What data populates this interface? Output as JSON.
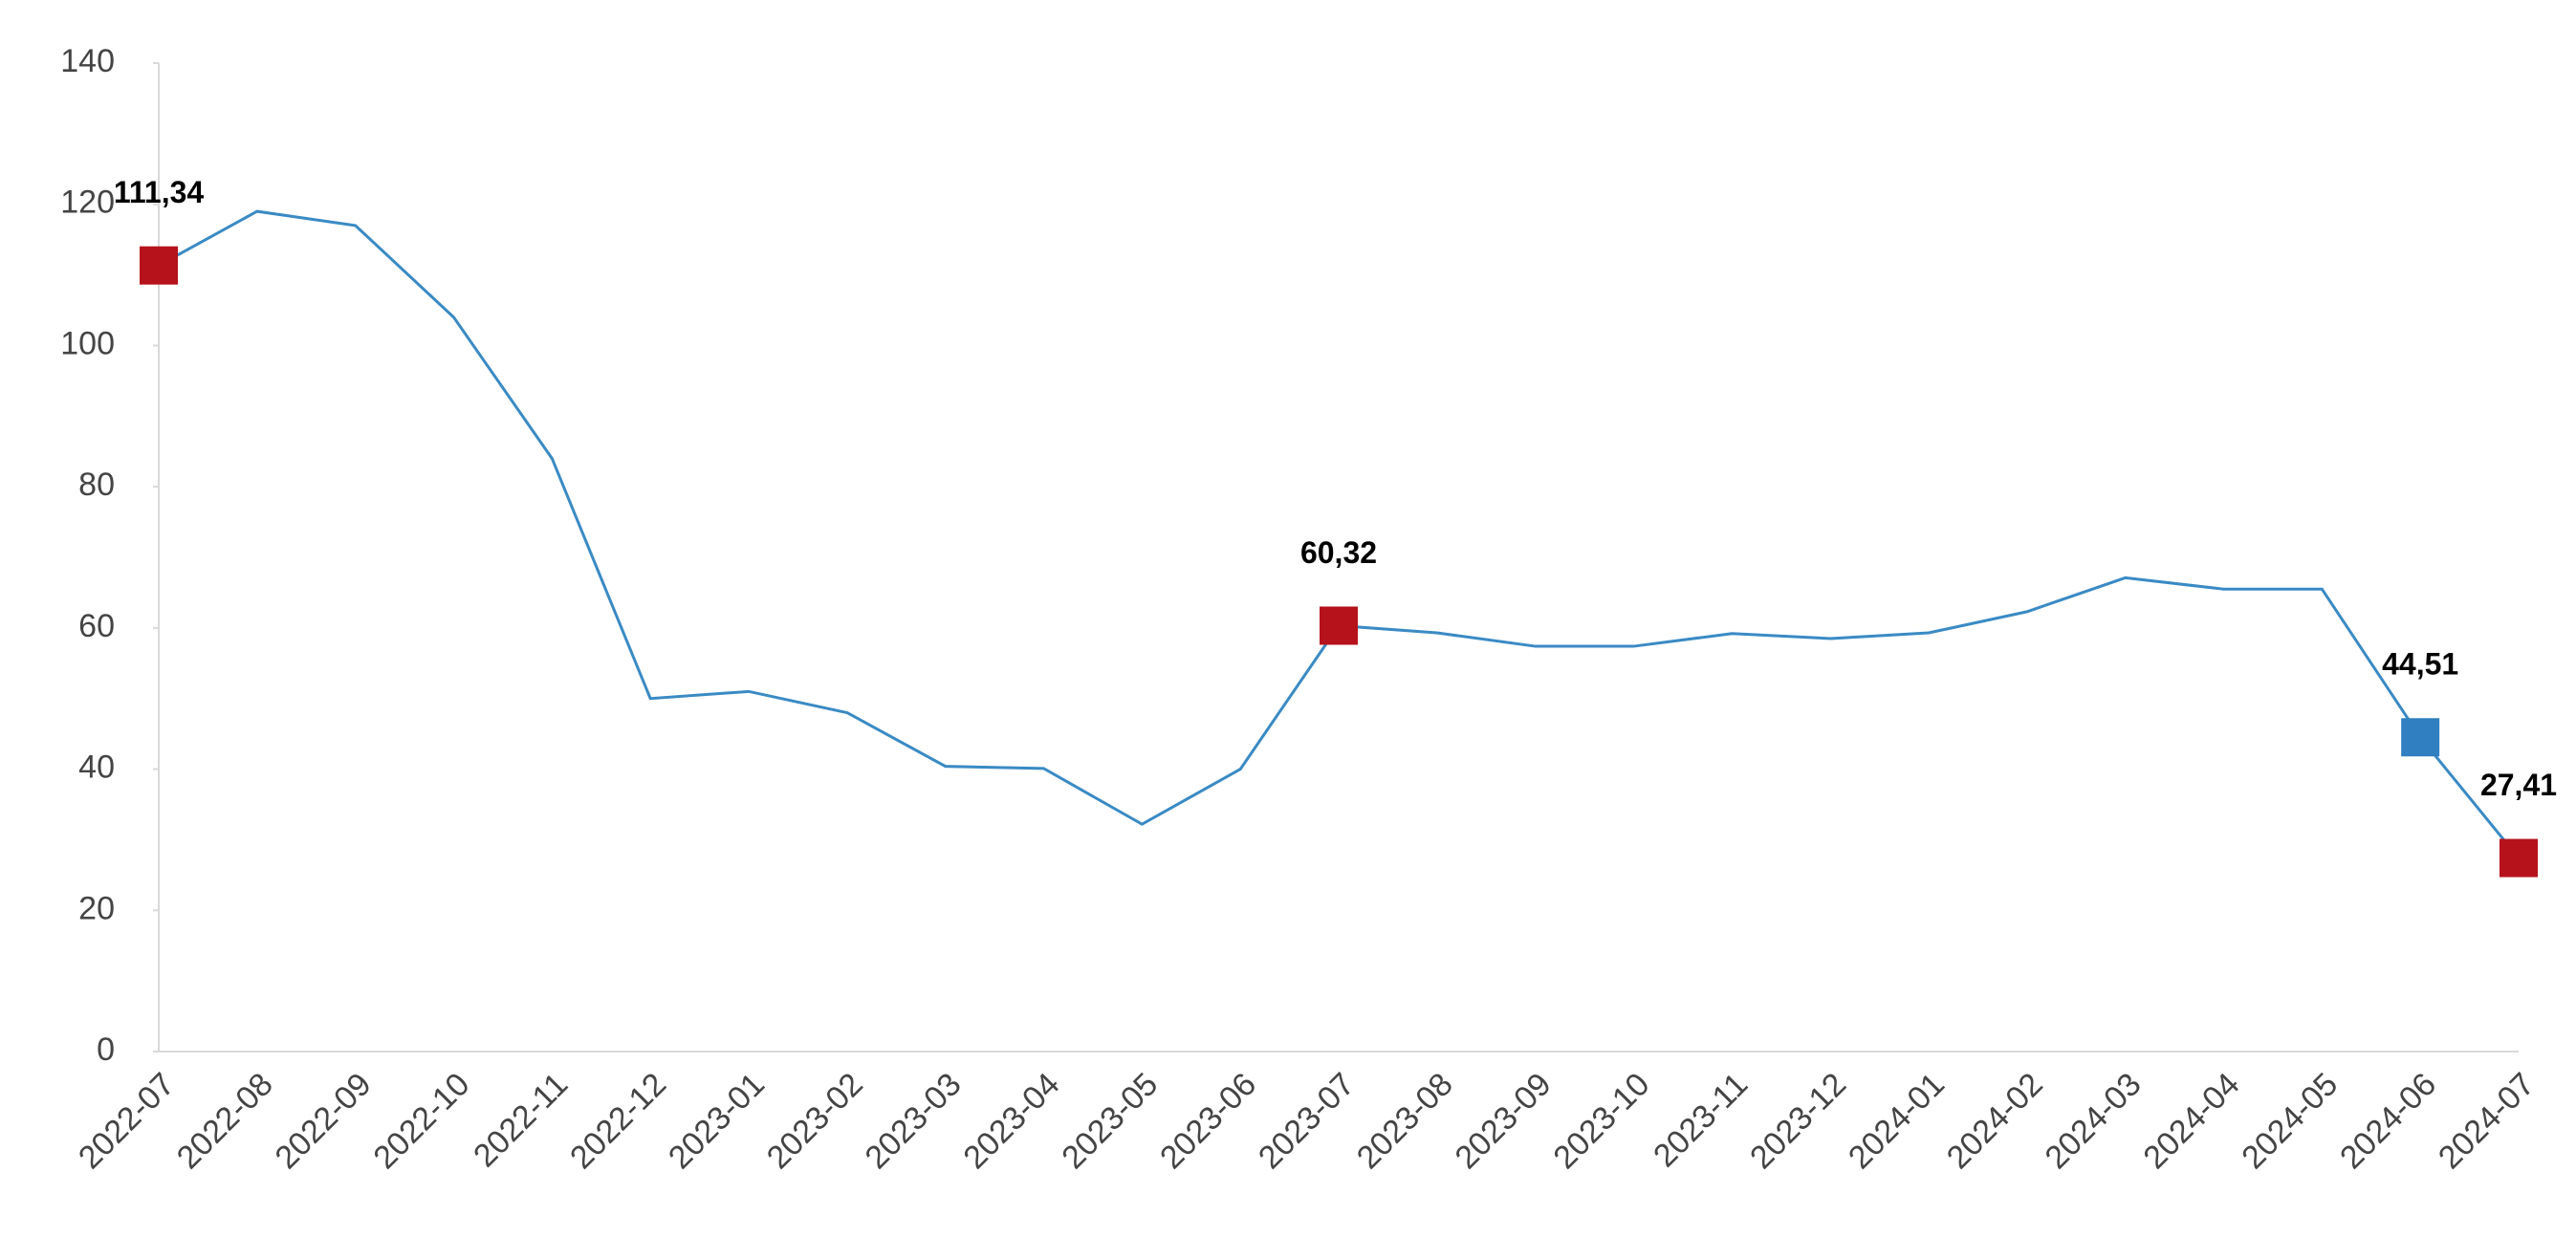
{
  "chart_data": {
    "type": "line",
    "categories": [
      "2022-07",
      "2022-08",
      "2022-09",
      "2022-10",
      "2022-11",
      "2022-12",
      "2023-01",
      "2023-02",
      "2023-03",
      "2023-04",
      "2023-05",
      "2023-06",
      "2023-07",
      "2023-08",
      "2023-09",
      "2023-10",
      "2023-11",
      "2023-12",
      "2024-01",
      "2024-02",
      "2024-03",
      "2024-04",
      "2024-05",
      "2024-06",
      "2024-07"
    ],
    "values": [
      111.34,
      119,
      117,
      104,
      84,
      50,
      51,
      48,
      40.4,
      40.1,
      32.2,
      40,
      60.32,
      59.3,
      57.4,
      57.4,
      59.2,
      58.5,
      59.3,
      62.3,
      67.1,
      65.5,
      65.5,
      44.51,
      27.41
    ],
    "value_labels": [
      "111,34",
      null,
      null,
      null,
      null,
      null,
      null,
      null,
      null,
      null,
      null,
      null,
      "60,32",
      null,
      null,
      null,
      null,
      null,
      null,
      null,
      null,
      null,
      null,
      "44,51",
      "27,41"
    ],
    "marker_colors": [
      "#b5121b",
      null,
      null,
      null,
      null,
      null,
      null,
      null,
      null,
      null,
      null,
      null,
      "#b5121b",
      null,
      null,
      null,
      null,
      null,
      null,
      null,
      null,
      null,
      null,
      "#2f7fc1",
      "#b5121b"
    ],
    "color": "#3a8ac4",
    "ylim": [
      0,
      140
    ],
    "yticks": [
      0,
      20,
      40,
      60,
      80,
      100,
      120,
      140
    ]
  }
}
